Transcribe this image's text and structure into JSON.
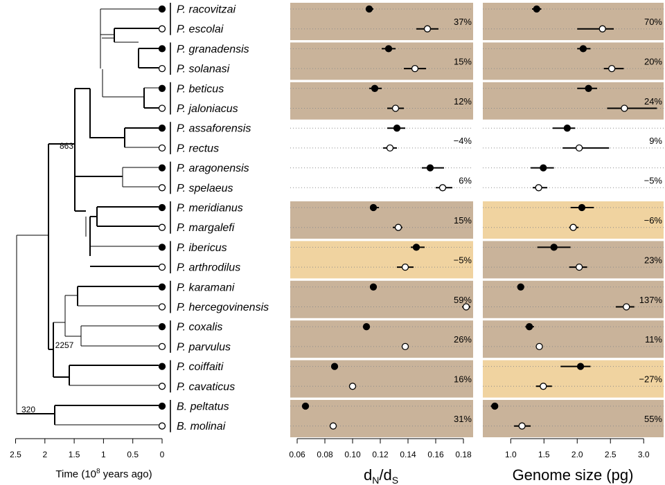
{
  "colors": {
    "shade_positive": "#c9b39a",
    "shade_negative": "#f0d3a0",
    "point_surface": "#000000",
    "point_cave": "#ffffff"
  },
  "tree": {
    "axis_ticks": [
      "2.5",
      "2",
      "1.5",
      "1",
      "0.5",
      "0"
    ],
    "axis_label_prefix": "Time (10",
    "axis_label_sup": "8",
    "axis_label_suffix": " years ago)",
    "node_labels": [
      "863",
      "2257",
      "320"
    ]
  },
  "pairs": [
    {
      "surface": "P. racovitzai",
      "cave": "P. escolai"
    },
    {
      "surface": "P. granadensis",
      "cave": "P. solanasi"
    },
    {
      "surface": "P. beticus",
      "cave": "P. jaloniacus"
    },
    {
      "surface": "P. assaforensis",
      "cave": "P. rectus"
    },
    {
      "surface": "P. aragonensis",
      "cave": "P. spelaeus"
    },
    {
      "surface": "P. meridianus",
      "cave": "P. margalefi"
    },
    {
      "surface": "P. ibericus",
      "cave": "P. arthrodilus"
    },
    {
      "surface": "P. karamani",
      "cave": "P. hercegovinensis"
    },
    {
      "surface": "P. coxalis",
      "cave": "P. parvulus"
    },
    {
      "surface": "P. coiffaiti",
      "cave": "P. cavaticus"
    },
    {
      "surface": "B. peltatus",
      "cave": "B. molinai"
    }
  ],
  "chart_data": [
    {
      "type": "scatter",
      "xlabel_main": "d",
      "xlabel_sub1": "N",
      "xlabel_mid": "/d",
      "xlabel_sub2": "S",
      "xlim": [
        0.055,
        0.187
      ],
      "ticks": [
        "0.06",
        "0.08",
        "0.10",
        "0.12",
        "0.14",
        "0.16",
        "0.18"
      ],
      "tick_values": [
        0.06,
        0.08,
        0.1,
        0.12,
        0.14,
        0.16,
        0.18
      ],
      "series": [
        {
          "values": [
            0.112,
            0.126,
            0.116,
            0.132,
            0.156,
            0.115,
            0.146,
            0.115,
            0.11,
            0.087,
            0.066
          ],
          "lo": [
            0.11,
            0.121,
            0.112,
            0.125,
            0.15,
            0.113,
            0.142,
            0.115,
            0.11,
            0.087,
            0.066
          ],
          "hi": [
            0.115,
            0.131,
            0.121,
            0.138,
            0.166,
            0.119,
            0.152,
            0.115,
            0.11,
            0.087,
            0.066
          ]
        },
        {
          "values": [
            0.154,
            0.145,
            0.131,
            0.127,
            0.165,
            0.133,
            0.138,
            0.182,
            0.138,
            0.1,
            0.086
          ],
          "lo": [
            0.146,
            0.137,
            0.125,
            0.122,
            0.16,
            0.129,
            0.132,
            0.179,
            0.138,
            0.1,
            0.084
          ],
          "hi": [
            0.162,
            0.153,
            0.137,
            0.132,
            0.172,
            0.136,
            0.144,
            0.185,
            0.138,
            0.1,
            0.088
          ]
        }
      ],
      "percent_labels": [
        "37%",
        "15%",
        "12%",
        "−4%",
        "6%",
        "15%",
        "−5%",
        "59%",
        "26%",
        "16%",
        "31%"
      ],
      "shading": [
        "positive",
        "positive",
        "positive",
        "none",
        "none",
        "positive",
        "negative",
        "positive",
        "positive",
        "positive",
        "positive"
      ]
    },
    {
      "type": "scatter",
      "xlabel": "Genome size (pg)",
      "xlim": [
        0.58,
        3.3
      ],
      "ticks": [
        "1.0",
        "1.5",
        "2.0",
        "2.5",
        "3.0"
      ],
      "tick_values": [
        1.0,
        1.5,
        2.0,
        2.5,
        3.0
      ],
      "series": [
        {
          "values": [
            1.39,
            2.09,
            2.17,
            1.85,
            1.49,
            2.07,
            1.65,
            1.15,
            1.28,
            2.05,
            0.76
          ],
          "lo": [
            1.32,
            2.0,
            2.0,
            1.63,
            1.3,
            1.9,
            1.4,
            1.15,
            1.22,
            1.75,
            0.7
          ],
          "hi": [
            1.46,
            2.2,
            2.3,
            1.97,
            1.65,
            2.25,
            1.9,
            1.15,
            1.35,
            2.2,
            0.8
          ]
        },
        {
          "values": [
            2.38,
            2.52,
            2.71,
            2.03,
            1.42,
            1.94,
            2.03,
            2.74,
            1.43,
            1.49,
            1.17
          ],
          "lo": [
            2.0,
            2.4,
            2.45,
            1.78,
            1.33,
            1.88,
            1.88,
            2.58,
            1.43,
            1.38,
            1.05
          ],
          "hi": [
            2.55,
            2.7,
            3.2,
            2.48,
            1.55,
            2.02,
            2.15,
            2.86,
            1.43,
            1.62,
            1.3
          ]
        }
      ],
      "percent_labels": [
        "70%",
        "20%",
        "24%",
        "9%",
        "−5%",
        "−6%",
        "23%",
        "137%",
        "11%",
        "−27%",
        "55%"
      ],
      "shading": [
        "positive",
        "positive",
        "positive",
        "none",
        "none",
        "negative",
        "positive",
        "positive",
        "positive",
        "negative",
        "positive"
      ]
    }
  ]
}
